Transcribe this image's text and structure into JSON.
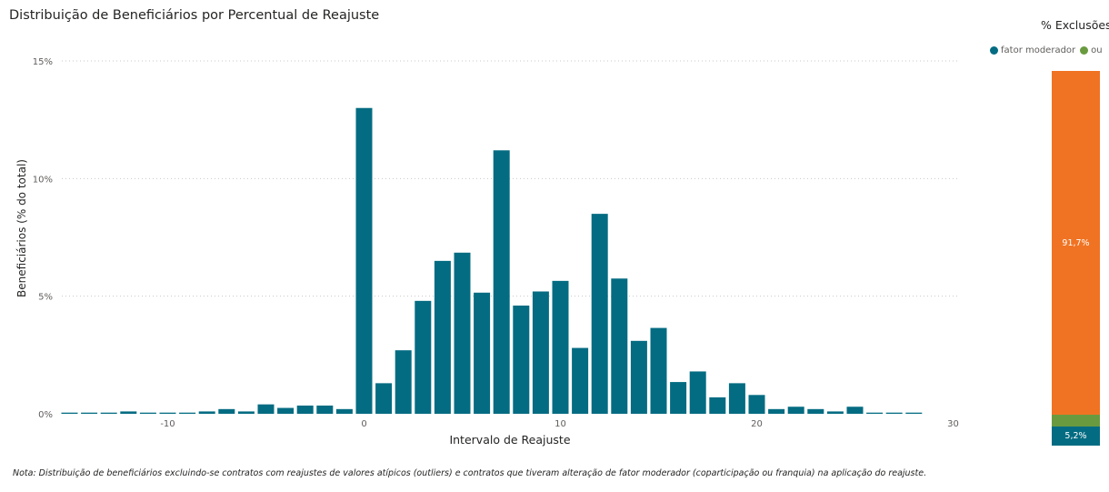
{
  "chart_data": [
    {
      "type": "bar",
      "title": "Distribuição de Beneficiários por Percentual de Reajuste",
      "xlabel": "Intervalo de Reajuste",
      "ylabel": "Beneficiários (% do total)",
      "xlim": [
        -15.5,
        28.5
      ],
      "ylim": [
        0,
        15
      ],
      "xticks": [
        {
          "value": -10,
          "label": "-10"
        },
        {
          "value": 0,
          "label": "0"
        },
        {
          "value": 10,
          "label": "10"
        },
        {
          "value": 20,
          "label": "20"
        },
        {
          "value": 30,
          "label": "30"
        }
      ],
      "yticks": [
        {
          "value": 0,
          "label": "0%"
        },
        {
          "value": 5,
          "label": "5%"
        },
        {
          "value": 10,
          "label": "10%"
        },
        {
          "value": 15,
          "label": "15%"
        }
      ],
      "grid": true,
      "color": "#046c82",
      "x": [
        -15,
        -14,
        -13,
        -12,
        -11,
        -10,
        -9,
        -8,
        -7,
        -6,
        -5,
        -4,
        -3,
        -2,
        -1,
        0,
        1,
        2,
        3,
        4,
        5,
        6,
        7,
        8,
        9,
        10,
        11,
        12,
        13,
        14,
        15,
        16,
        17,
        18,
        19,
        20,
        21,
        22,
        23,
        24,
        25,
        26,
        27,
        28
      ],
      "values": [
        0.05,
        0.05,
        0.05,
        0.1,
        0.05,
        0.05,
        0.05,
        0.1,
        0.2,
        0.1,
        0.4,
        0.25,
        0.35,
        0.35,
        0.2,
        13.0,
        1.3,
        2.7,
        4.8,
        6.5,
        6.85,
        5.15,
        11.2,
        4.6,
        5.2,
        5.65,
        2.8,
        8.5,
        5.75,
        3.1,
        3.65,
        1.35,
        1.8,
        0.7,
        1.3,
        0.8,
        0.2,
        0.3,
        0.2,
        0.1,
        0.3,
        0.05,
        0.05,
        0.05
      ]
    },
    {
      "type": "bar",
      "title": "% Exclusões",
      "categories": [
        "% Exclusões"
      ],
      "series": [
        {
          "name": "fator moderador",
          "value": 5.2,
          "label": "5,2%",
          "color": "#046c82"
        },
        {
          "name": "ou",
          "value": 3.1,
          "label": "",
          "color": "#6a9a3f"
        },
        {
          "name": "",
          "value": 91.7,
          "label": "91,7%",
          "color": "#f07323"
        }
      ],
      "legend": "top"
    }
  ],
  "note": "Nota: Distribuição de beneficiários excluindo-se contratos com reajustes de valores atípicos (outliers) e contratos que tiveram alteração de fator moderador (coparticipação ou franquia) na aplicação do reajuste."
}
